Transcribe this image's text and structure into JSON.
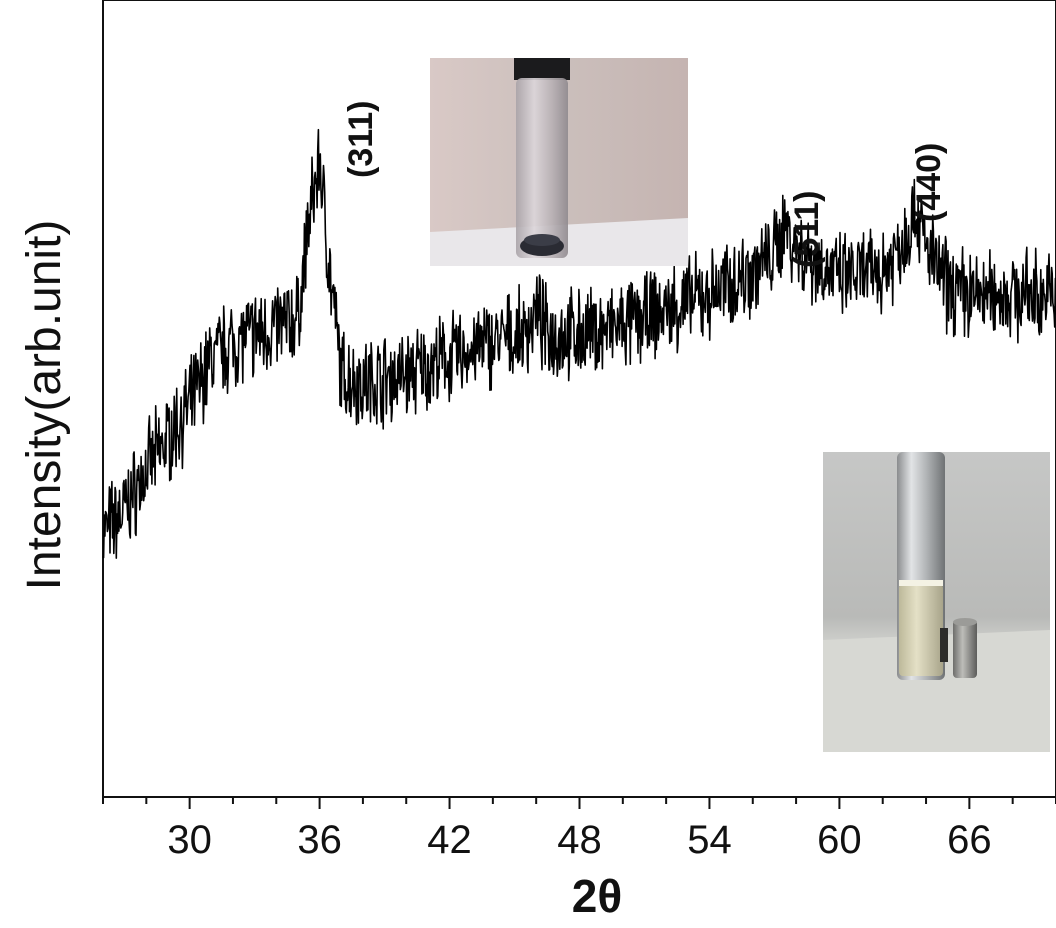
{
  "chart_data": {
    "type": "line",
    "title": "",
    "xlabel": "2θ",
    "ylabel": "Intensity(arb.unit)",
    "xlim": [
      26,
      70
    ],
    "ylim": [
      0,
      100
    ],
    "x_ticks": [
      30,
      36,
      42,
      48,
      54,
      60,
      66
    ],
    "y_ticks_shown": false,
    "grid": false,
    "legend": "none",
    "line_color": "#000000",
    "series": [
      {
        "x": [
          26,
          27,
          28,
          29,
          30,
          31,
          32,
          33,
          34,
          35,
          35.5,
          36,
          36.5,
          37,
          38,
          40,
          42,
          44,
          45.5,
          46,
          46.5,
          48,
          50,
          52,
          54,
          56,
          57,
          57.5,
          58,
          60,
          62,
          63,
          63.5,
          64,
          65,
          66,
          68,
          70
        ],
        "values": [
          33,
          36,
          41,
          45,
          49,
          55,
          57,
          58,
          59,
          60,
          72,
          80,
          65,
          53,
          52,
          53,
          55,
          57,
          58,
          61,
          58,
          58,
          59,
          61,
          63,
          66,
          68,
          72,
          69,
          65,
          66,
          70,
          74,
          69,
          64,
          63,
          63,
          63
        ]
      }
    ],
    "annotations": [
      {
        "text": "(311)",
        "x": 36,
        "y": 83
      },
      {
        "text": "(511)",
        "x": 57.5,
        "y": 75
      },
      {
        "text": "(440)",
        "x": 63.5,
        "y": 77
      }
    ]
  },
  "insets": [
    {
      "name": "vial-dispersed-photo-inset",
      "alt_icon": "vial-with-powder-photo"
    },
    {
      "name": "vial-magnet-photo-inset",
      "alt_icon": "vial-with-magnet-photo"
    }
  ]
}
